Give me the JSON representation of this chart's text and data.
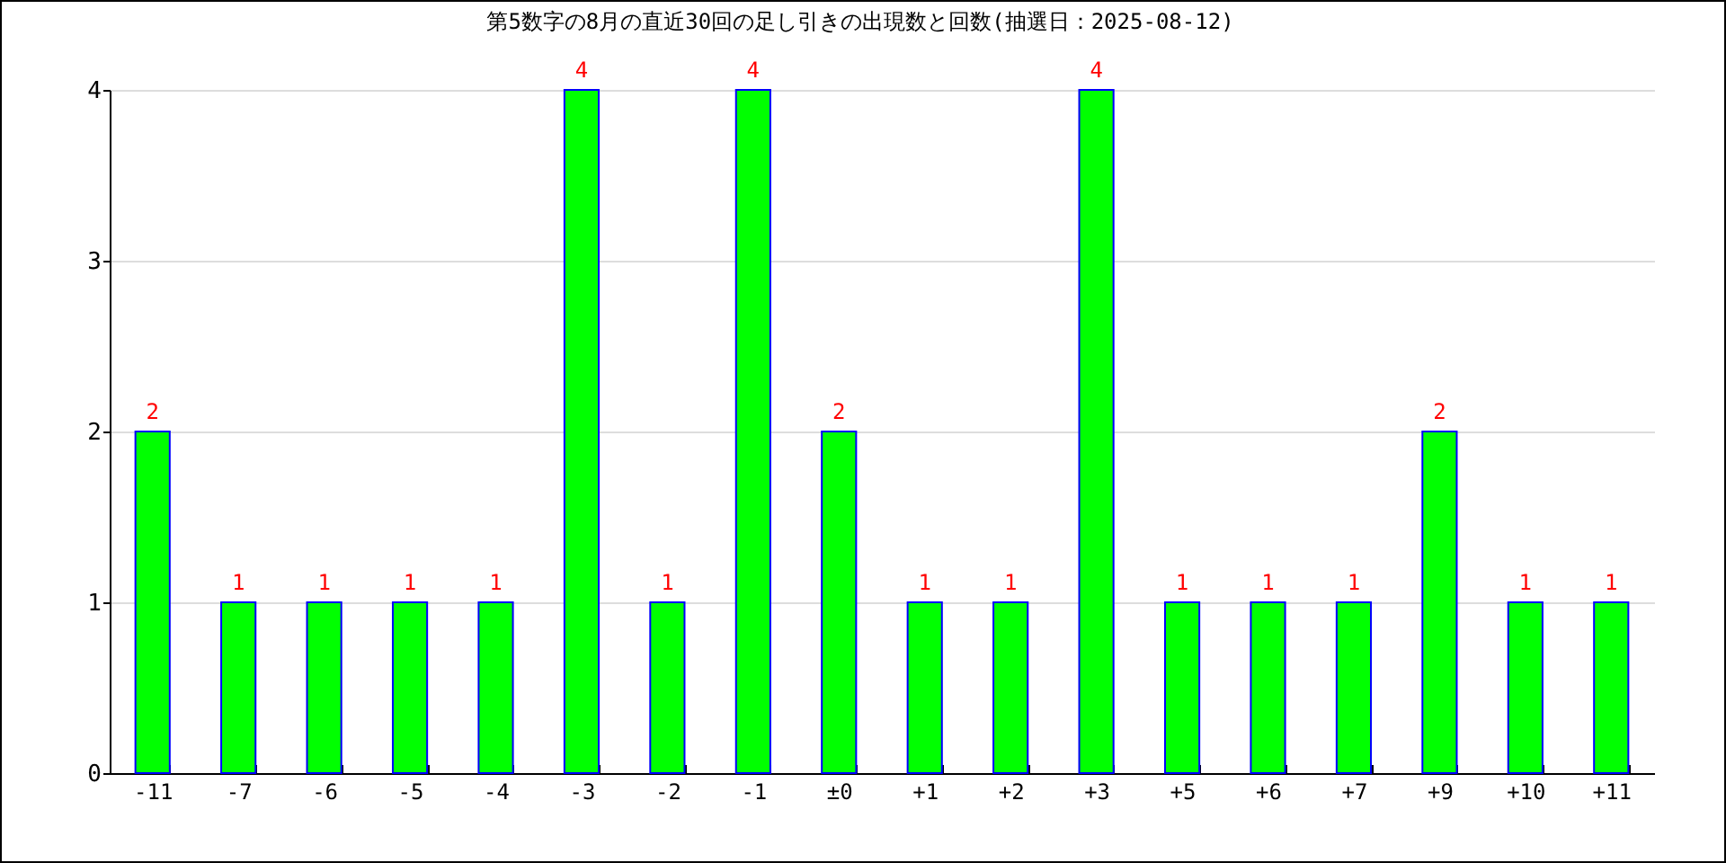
{
  "chart_data": {
    "type": "bar",
    "title": "第5数字の8月の直近30回の足し引きの出現数と回数(抽選日：2025-08-12)",
    "categories": [
      "-11",
      "-7",
      "-6",
      "-5",
      "-4",
      "-3",
      "-2",
      "-1",
      "±0",
      "+1",
      "+2",
      "+3",
      "+5",
      "+6",
      "+7",
      "+9",
      "+10",
      "+11"
    ],
    "values": [
      2,
      1,
      1,
      1,
      1,
      4,
      1,
      4,
      2,
      1,
      1,
      4,
      1,
      1,
      1,
      2,
      1,
      1
    ],
    "color": "#00ff00",
    "ylim": [
      0,
      4
    ],
    "yticks": [
      0,
      1,
      2,
      3,
      4
    ],
    "grid": "y",
    "data_labels": true
  }
}
